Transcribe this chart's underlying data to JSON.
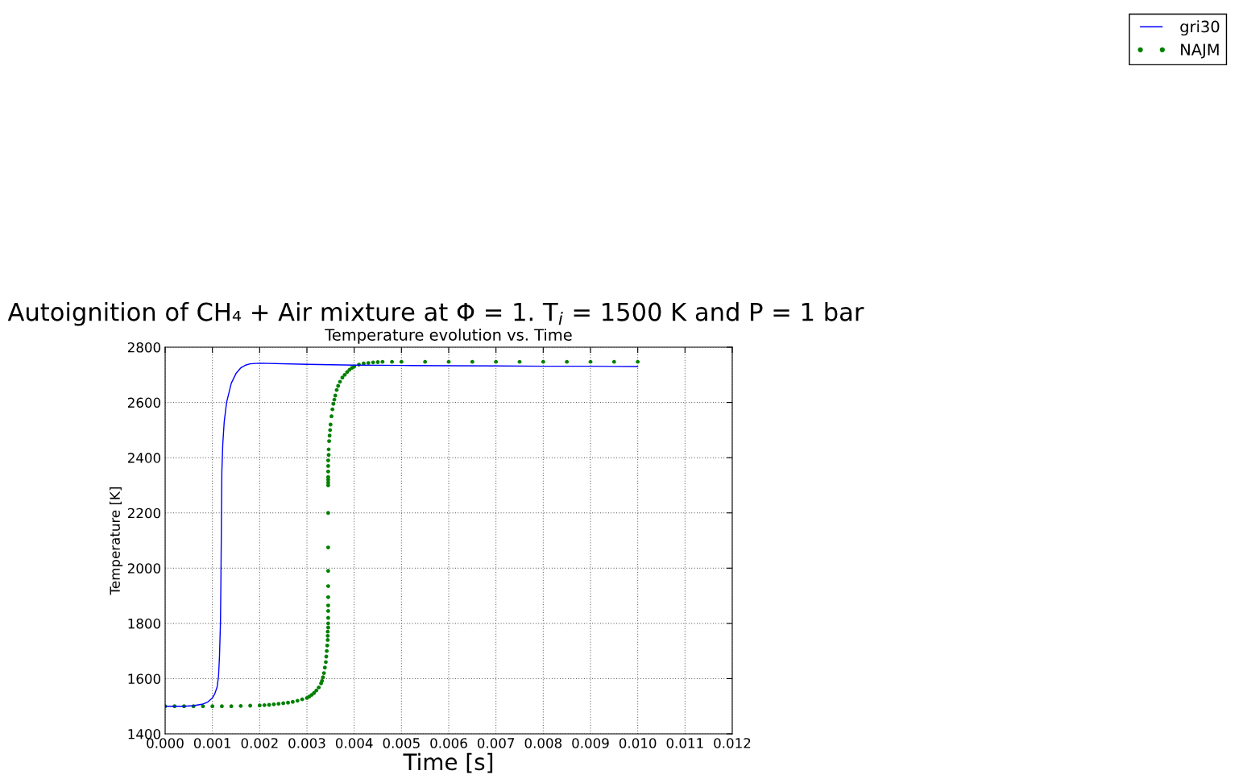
{
  "chart_data": {
    "type": "line",
    "title": "Autoignition of CH₄ + Air mixture at Φ = 1. T$_{i}$ = 1500 K and P = 1 bar",
    "subtitle": "Temperature evolution vs. Time",
    "xlabel": "Time [s]",
    "ylabel": "Temperature [K]",
    "xlim": [
      0,
      0.012
    ],
    "xticks": [
      {
        "value": 0,
        "label": "0.000"
      },
      {
        "value": 0.001,
        "label": "0.001"
      },
      {
        "value": 0.002,
        "label": "0.002"
      },
      {
        "value": 0.003,
        "label": "0.003"
      },
      {
        "value": 0.004,
        "label": "0.004"
      },
      {
        "value": 0.005,
        "label": "0.005"
      },
      {
        "value": 0.006,
        "label": "0.006"
      },
      {
        "value": 0.007,
        "label": "0.007"
      },
      {
        "value": 0.008,
        "label": "0.008"
      },
      {
        "value": 0.009,
        "label": "0.009"
      },
      {
        "value": 0.01,
        "label": "0.010"
      },
      {
        "value": 0.011,
        "label": "0.011"
      },
      {
        "value": 0.012,
        "label": "0.012"
      }
    ],
    "ylim": [
      1400,
      2800
    ],
    "yticks": [
      1400,
      1600,
      1800,
      2000,
      2200,
      2400,
      2600,
      2800
    ],
    "grid": true,
    "legend": "top right",
    "series": [
      {
        "name": "gri30",
        "color": "#0000ff",
        "marker": "none",
        "x": [
          0,
          0.0004,
          0.0006,
          0.0008,
          0.0009,
          0.001,
          0.00105,
          0.0011,
          0.00113,
          0.00115,
          0.00117,
          0.00118,
          0.00119,
          0.0012,
          0.00122,
          0.00125,
          0.0013,
          0.0014,
          0.0015,
          0.0016,
          0.0017,
          0.0018,
          0.002,
          0.003,
          0.004,
          0.005,
          0.006,
          0.007,
          0.008,
          0.009,
          0.01
        ],
        "values": [
          1500,
          1500,
          1502,
          1508,
          1515,
          1530,
          1545,
          1570,
          1610,
          1680,
          1800,
          1950,
          2150,
          2350,
          2450,
          2530,
          2600,
          2670,
          2705,
          2725,
          2735,
          2740,
          2742,
          2738,
          2735,
          2734,
          2733,
          2732,
          2731,
          2731,
          2730
        ]
      },
      {
        "name": "NAJM",
        "type": "scatter",
        "color": "#008000",
        "marker": "circle",
        "x": [
          0,
          0.0002,
          0.0004,
          0.0006,
          0.0008,
          0.001,
          0.0012,
          0.0014,
          0.0016,
          0.0018,
          0.002,
          0.0021,
          0.0022,
          0.0023,
          0.0024,
          0.0025,
          0.0026,
          0.0027,
          0.0028,
          0.0029,
          0.003,
          0.00305,
          0.0031,
          0.00315,
          0.0032,
          0.00325,
          0.0033,
          0.00332,
          0.00334,
          0.00336,
          0.00338,
          0.0034,
          0.00341,
          0.00342,
          0.00343,
          0.00344,
          0.00344,
          0.00344,
          0.00345,
          0.00345,
          0.00345,
          0.00345,
          0.00345,
          0.00345,
          0.00345,
          0.00345,
          0.00345,
          0.00345,
          0.00345,
          0.00345,
          0.00345,
          0.00345,
          0.00345,
          0.00345,
          0.00345,
          0.00346,
          0.00346,
          0.00347,
          0.00348,
          0.00349,
          0.0035,
          0.00352,
          0.00354,
          0.00356,
          0.00358,
          0.0036,
          0.00363,
          0.00366,
          0.0037,
          0.00375,
          0.0038,
          0.00385,
          0.0039,
          0.00395,
          0.004,
          0.0041,
          0.0042,
          0.0043,
          0.0044,
          0.0045,
          0.0046,
          0.0048,
          0.005,
          0.0055,
          0.006,
          0.0065,
          0.007,
          0.0075,
          0.008,
          0.0085,
          0.009,
          0.0095,
          0.01
        ],
        "values": [
          1500,
          1500,
          1500,
          1500,
          1500,
          1500,
          1500,
          1500,
          1501,
          1502,
          1503,
          1504,
          1505,
          1507,
          1509,
          1511,
          1513,
          1516,
          1520,
          1525,
          1530,
          1535,
          1541,
          1548,
          1557,
          1568,
          1583,
          1592,
          1605,
          1620,
          1640,
          1660,
          1680,
          1700,
          1720,
          1740,
          1755,
          1770,
          1785,
          1800,
          1820,
          1845,
          1865,
          1895,
          1935,
          1990,
          2075,
          2200,
          2300,
          2310,
          2320,
          2330,
          2350,
          2370,
          2390,
          2410,
          2430,
          2460,
          2480,
          2500,
          2520,
          2550,
          2575,
          2595,
          2610,
          2625,
          2645,
          2660,
          2675,
          2690,
          2700,
          2710,
          2718,
          2725,
          2730,
          2737,
          2741,
          2743,
          2745,
          2746,
          2747,
          2747,
          2747,
          2747,
          2747,
          2747,
          2747,
          2747,
          2747,
          2747,
          2747,
          2747,
          2747
        ]
      }
    ]
  }
}
